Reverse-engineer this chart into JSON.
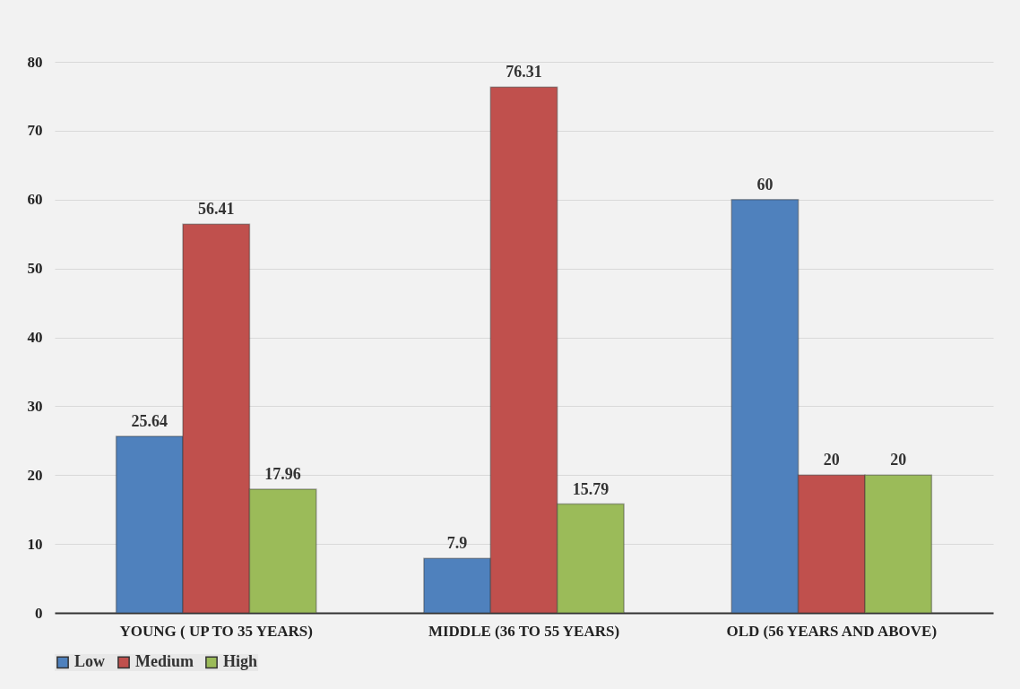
{
  "chart_data": {
    "type": "bar",
    "categories": [
      "YOUNG ( UP TO 35 YEARS)",
      "MIDDLE (36 TO 55 YEARS)",
      "OLD (56 YEARS AND ABOVE)"
    ],
    "series": [
      {
        "name": "Low",
        "color": "#4f81bd",
        "values": [
          25.64,
          7.9,
          60
        ]
      },
      {
        "name": "Medium",
        "color": "#c0504d",
        "values": [
          56.41,
          76.31,
          20
        ]
      },
      {
        "name": "High",
        "color": "#9bbb59",
        "values": [
          17.96,
          15.79,
          20
        ]
      }
    ],
    "ylim": [
      0,
      80
    ],
    "yticks": [
      0,
      10,
      20,
      30,
      40,
      50,
      60,
      70,
      80
    ],
    "grid": "y",
    "legend": "bottom",
    "data_labels": true
  }
}
